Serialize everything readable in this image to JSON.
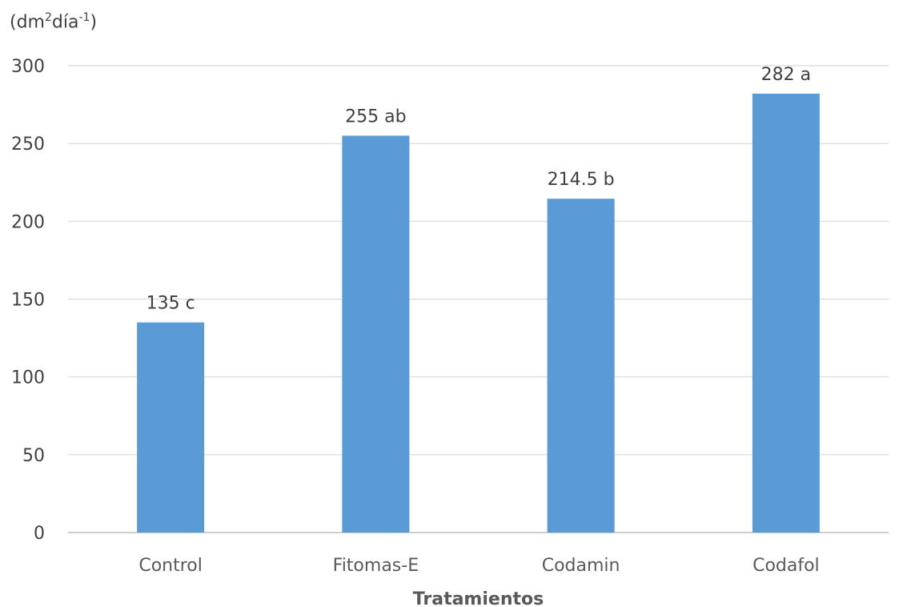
{
  "chart_data": {
    "type": "bar",
    "ylabel": {
      "prefix": "(dm",
      "sup1": "2",
      "mid": "día",
      "sup2": "-1",
      "suffix": ")"
    },
    "xlabel": "Tratamientos",
    "categories": [
      "Control",
      "Fitomas-E",
      "Codamin",
      "Codafol"
    ],
    "values": [
      135,
      255,
      214.5,
      282
    ],
    "data_labels": [
      "135 c",
      "255 ab",
      "214.5 b",
      "282 a"
    ],
    "ylim": [
      0,
      300
    ],
    "yticks": [
      0,
      50,
      100,
      150,
      200,
      250,
      300
    ],
    "grid": true,
    "legend": "none",
    "colors": {
      "bar": "#5b9bd5",
      "grid": "#d9d9d9",
      "axis": "#bfbfbf",
      "text": "#404040",
      "label": "#595959"
    }
  }
}
